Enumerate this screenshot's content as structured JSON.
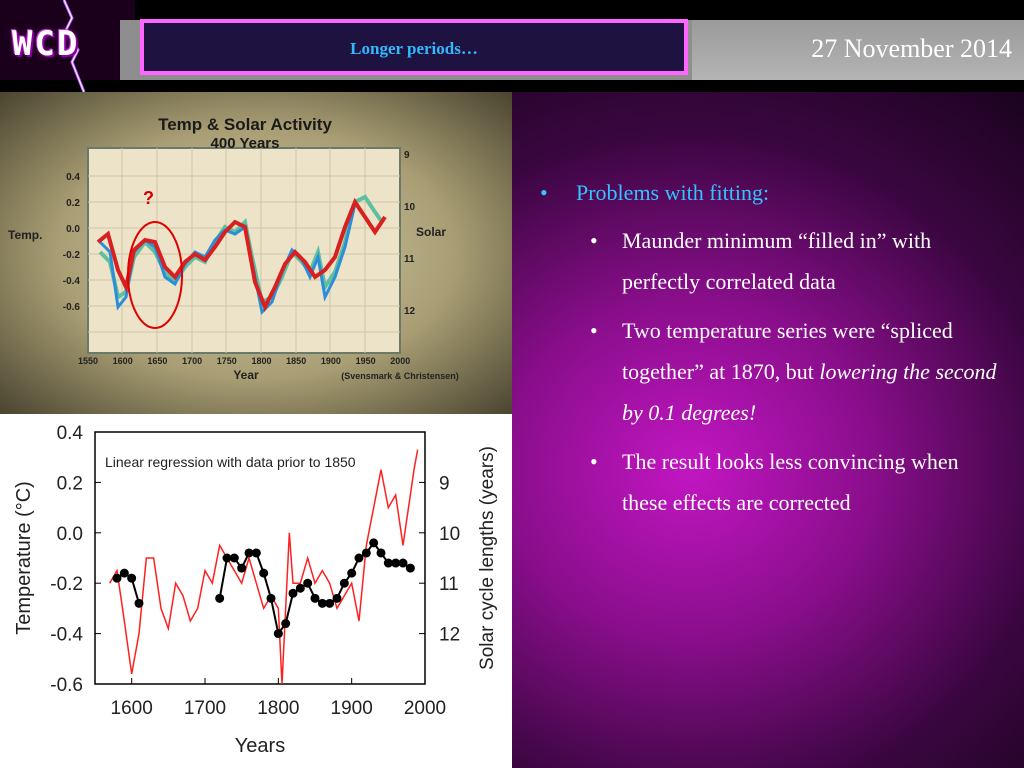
{
  "header": {
    "logo_text": "WCD",
    "title": "Longer periods…",
    "date": "27 November 2014"
  },
  "colors": {
    "title_border": "#ff66ff",
    "title_text": "#33b8ff",
    "bullet_heading": "#33c3ff",
    "background_center": "#c216c2"
  },
  "top_chart": {
    "title_line1": "Temp & Solar Activity",
    "title_line2": "400 Years",
    "left_label": "Temp.",
    "right_label": "Solar",
    "question_mark": "?",
    "xlabel": "Year",
    "credit": "(Svensmark & Christensen)",
    "y_ticks": [
      "0.4",
      "0.2",
      "0.0",
      "-0.2",
      "-0.4",
      "-0.6"
    ],
    "right_ticks": [
      "9",
      "10",
      "11",
      "12"
    ],
    "x_ticks": [
      "1550",
      "1600",
      "1650",
      "1700",
      "1750",
      "1800",
      "1850",
      "1900",
      "1950",
      "2000"
    ]
  },
  "chart_data": {
    "type": "line",
    "annotation": "Linear regression with data prior to 1850",
    "xlabel": "Years",
    "ylabel": "Temperature  (°C)",
    "y2label": "Solar cycle lengths (years)",
    "xlim": [
      1550,
      2000
    ],
    "ylim": [
      -0.6,
      0.4
    ],
    "y2lim": [
      13,
      8
    ],
    "x_ticks": [
      "1600",
      "1700",
      "1800",
      "1900",
      "2000"
    ],
    "y_ticks": [
      "0.4",
      "0.2",
      "0.0",
      "-0.2",
      "-0.4",
      "-0.6"
    ],
    "y2_ticks": [
      "9",
      "10",
      "11",
      "12"
    ],
    "series": [
      {
        "color": "#ff2020",
        "x": [
          1570,
          1580,
          1590,
          1600,
          1610,
          1620,
          1630,
          1640,
          1650,
          1660,
          1670,
          1680,
          1690,
          1700,
          1710,
          1720,
          1730,
          1740,
          1750,
          1760,
          1770,
          1780,
          1790,
          1800,
          1805,
          1810,
          1815,
          1820,
          1830,
          1840,
          1850,
          1860,
          1870,
          1880,
          1890,
          1900,
          1910,
          1920,
          1930,
          1940,
          1950,
          1960,
          1970,
          1980,
          1985,
          1990
        ],
        "y": [
          -0.2,
          -0.15,
          -0.35,
          -0.56,
          -0.4,
          -0.1,
          -0.1,
          -0.3,
          -0.38,
          -0.2,
          -0.25,
          -0.35,
          -0.3,
          -0.15,
          -0.2,
          -0.05,
          -0.1,
          -0.15,
          -0.2,
          -0.1,
          -0.2,
          -0.3,
          -0.25,
          -0.3,
          -0.6,
          -0.3,
          0.0,
          -0.2,
          -0.2,
          -0.1,
          -0.2,
          -0.15,
          -0.2,
          -0.3,
          -0.25,
          -0.2,
          -0.35,
          -0.05,
          0.1,
          0.25,
          0.1,
          0.15,
          -0.05,
          0.15,
          0.25,
          0.33
        ]
      },
      {
        "color": "#000000",
        "x": [
          1580,
          1590,
          1600,
          1610,
          1720,
          1730,
          1740,
          1750,
          1760,
          1770,
          1780,
          1790,
          1800,
          1810,
          1820,
          1830,
          1840,
          1850,
          1860,
          1870,
          1880,
          1890,
          1900,
          1910,
          1920,
          1930,
          1940,
          1950,
          1960,
          1970,
          1980
        ],
        "y": [
          10.9,
          10.8,
          10.9,
          11.4,
          11.3,
          10.5,
          10.5,
          10.7,
          10.4,
          10.4,
          10.8,
          11.3,
          12.0,
          11.8,
          11.2,
          11.1,
          11.0,
          11.3,
          11.4,
          11.4,
          11.3,
          11.0,
          10.8,
          10.5,
          10.4,
          10.2,
          10.4,
          10.6,
          10.6,
          10.6,
          10.7
        ]
      }
    ]
  },
  "bullets": {
    "heading": "Problems with fitting:",
    "item1": "Maunder minimum “filled in” with perfectly correlated data",
    "item2_a": "Two temperature series were “spliced together” at 1870, but ",
    "item2_b": "lowering the second by 0.1 degrees!",
    "item3": "The result looks less convincing when these effects are corrected"
  }
}
